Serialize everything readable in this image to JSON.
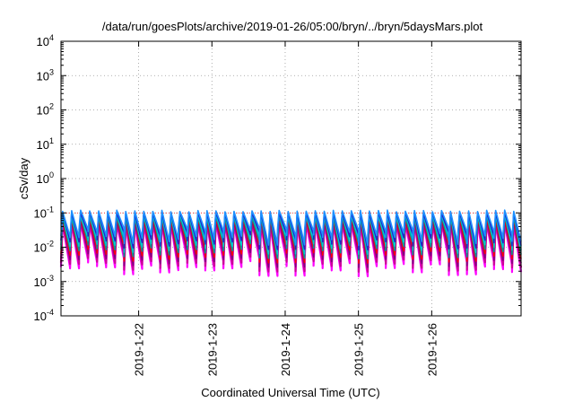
{
  "chart_data": {
    "type": "line",
    "title": "/data/run/goesPlots/archive/2019-01-26/05:00/bryn/../bryn/5daysMars.plot",
    "xlabel": "Coordinated Universal Time (UTC)",
    "ylabel": "cSv/day",
    "yscale": "log",
    "ylim": [
      0.0001,
      10000
    ],
    "y_ticks": [
      {
        "base": "10",
        "exp": "4"
      },
      {
        "base": "10",
        "exp": "3"
      },
      {
        "base": "10",
        "exp": "2"
      },
      {
        "base": "10",
        "exp": "1"
      },
      {
        "base": "10",
        "exp": "0"
      },
      {
        "base": "10",
        "exp": "-1"
      },
      {
        "base": "10",
        "exp": "-2"
      },
      {
        "base": "10",
        "exp": "-3"
      },
      {
        "base": "10",
        "exp": "-4"
      }
    ],
    "x_range_days": [
      "2019-01-21",
      "2019-01-26"
    ],
    "x_ticks": [
      "2019-1-22",
      "2019-1-23",
      "2019-1-24",
      "2019-1-25",
      "2019-1-26"
    ],
    "grid": "dotted",
    "reference_line_value": 0.1,
    "reference_line_color": "#ff0000",
    "sawtooth": {
      "count": 51,
      "peak_value": 0.12,
      "min_value": 0.0014
    },
    "series_colors": [
      "#ff00ff",
      "#cc0099",
      "#800080",
      "#ff0000",
      "#009999",
      "#00cccc",
      "#2222cc",
      "#1e90ff"
    ]
  }
}
